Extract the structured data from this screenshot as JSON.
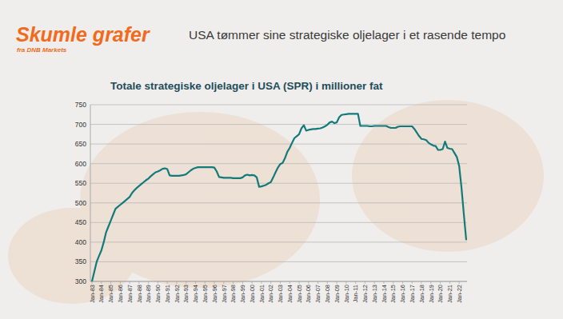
{
  "header": {
    "brand": "Skumle grafer",
    "source": "fra DNB Markets",
    "headline": "USA tømmer sine strategiske oljelager i et rasende tempo"
  },
  "chart_data": {
    "type": "line",
    "title": "Totale strategiske oljelager i USA (SPR) i millioner fat",
    "color": "#137a7a",
    "ylim": [
      300,
      750
    ],
    "yticks": [
      300,
      350,
      400,
      450,
      500,
      550,
      600,
      650,
      700,
      750
    ],
    "grid": true,
    "categories": [
      "Jan-83",
      null,
      null,
      null,
      "Jan-84",
      null,
      null,
      null,
      "Jan-85",
      null,
      null,
      null,
      "Jan-86",
      null,
      null,
      null,
      "Jan-87",
      null,
      null,
      null,
      "Jan-88",
      null,
      null,
      null,
      "Jan-89",
      null,
      null,
      null,
      "Jan-90",
      null,
      null,
      null,
      "Jan-91",
      null,
      null,
      null,
      "Jan-92",
      null,
      null,
      null,
      "Jan-93",
      null,
      null,
      null,
      "Jan-94",
      null,
      null,
      null,
      "Jan-95",
      null,
      null,
      null,
      "Jan-96",
      null,
      null,
      null,
      "Jan-97",
      null,
      null,
      null,
      "Jan-98",
      null,
      null,
      null,
      "Jan-99",
      null,
      null,
      null,
      "Jan-00",
      null,
      null,
      null,
      "Jan-01",
      null,
      null,
      null,
      "Jan-02",
      null,
      null,
      null,
      "Jan-03",
      null,
      null,
      null,
      "Jan-04",
      null,
      null,
      null,
      "Jan-05",
      null,
      null,
      null,
      "Jan-06",
      null,
      null,
      null,
      "Jan-07",
      null,
      null,
      null,
      "Jan-08",
      null,
      null,
      null,
      "Jan-09",
      null,
      null,
      null,
      "Jan-10",
      null,
      null,
      null,
      "Jan-11",
      null,
      null,
      null,
      "Jan-12",
      null,
      null,
      null,
      "Jan-13",
      null,
      null,
      null,
      "Jan-14",
      null,
      null,
      null,
      "Jan-15",
      null,
      null,
      null,
      "Jan-16",
      null,
      null,
      null,
      "Jan-17",
      null,
      null,
      null,
      "Jan-18",
      null,
      null,
      null,
      "Jan-19",
      null,
      null,
      null,
      "Jan-20",
      null,
      null,
      null,
      "Jan-21",
      null,
      null,
      null,
      "Jan-22",
      null,
      null,
      null
    ],
    "values": [
      300,
      325,
      350,
      365,
      379,
      400,
      425,
      440,
      455,
      470,
      485,
      490,
      495,
      500,
      505,
      510,
      515,
      525,
      532,
      538,
      543,
      548,
      553,
      558,
      562,
      568,
      573,
      578,
      580,
      583,
      587,
      588,
      586,
      570,
      569,
      569,
      569,
      569,
      570,
      571,
      573,
      578,
      583,
      587,
      589,
      591,
      591,
      591,
      591,
      591,
      591,
      591,
      590,
      580,
      566,
      565,
      564,
      564,
      564,
      564,
      563,
      563,
      563,
      563,
      565,
      570,
      572,
      570,
      571,
      570,
      565,
      541,
      542,
      544,
      546,
      550,
      553,
      565,
      578,
      590,
      599,
      602,
      614,
      630,
      640,
      653,
      665,
      670,
      675,
      690,
      698,
      684,
      686,
      687,
      688,
      688,
      689,
      690,
      692,
      695,
      699,
      705,
      707,
      703,
      705,
      718,
      724,
      725,
      726,
      727,
      727,
      727,
      727,
      727,
      696,
      696,
      696,
      696,
      695,
      695,
      696,
      696,
      696,
      696,
      696,
      696,
      693,
      691,
      691,
      691,
      694,
      695,
      695,
      695,
      695,
      695,
      695,
      688,
      679,
      670,
      663,
      662,
      660,
      653,
      649,
      646,
      645,
      635,
      635,
      637,
      656,
      640,
      638,
      637,
      627,
      617,
      594,
      538,
      470,
      405
    ]
  }
}
